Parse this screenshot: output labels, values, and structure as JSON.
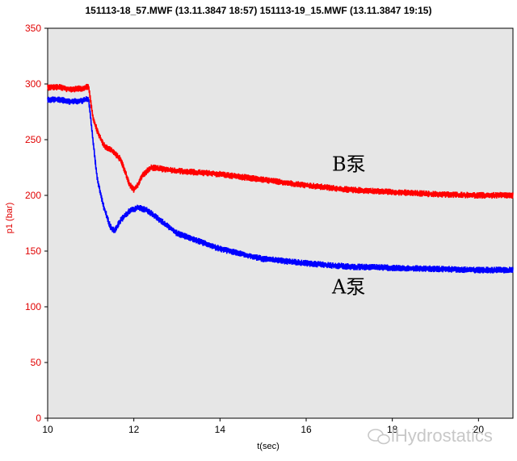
{
  "chart_data": {
    "type": "line",
    "title": "151113-18_57.MWF (13.11.3847 18:57) 151113-19_15.MWF (13.11.3847 19:15)",
    "xlabel": "t(sec)",
    "ylabel": "p1 (bar)",
    "xlim": [
      10,
      20.8
    ],
    "ylim": [
      0,
      350
    ],
    "x_ticks": [
      "10",
      "12",
      "14",
      "16",
      "18",
      "20"
    ],
    "y_ticks": [
      "0",
      "50",
      "100",
      "150",
      "200",
      "250",
      "300",
      "350"
    ],
    "grid": false,
    "background": "#e6e6e6",
    "series": [
      {
        "color": "#ff0000",
        "noise": 3,
        "x": [
          10.0,
          10.3,
          10.5,
          10.8,
          10.95,
          11.05,
          11.15,
          11.3,
          11.5,
          11.7,
          11.9,
          12.0,
          12.1,
          12.2,
          12.4,
          13.0,
          14.0,
          15.0,
          16.0,
          17.0,
          18.0,
          19.0,
          20.0,
          20.8
        ],
        "y": [
          297,
          297,
          295,
          296,
          298,
          270,
          258,
          245,
          240,
          232,
          210,
          205,
          210,
          218,
          225,
          222,
          219,
          214,
          209,
          205,
          203,
          201,
          200,
          200
        ]
      },
      {
        "color": "#0000ff",
        "noise": 3,
        "x": [
          10.0,
          10.3,
          10.5,
          10.8,
          10.95,
          11.05,
          11.15,
          11.3,
          11.45,
          11.55,
          11.7,
          11.9,
          12.1,
          12.3,
          12.6,
          13.0,
          14.0,
          15.0,
          16.0,
          17.0,
          18.0,
          19.0,
          20.0,
          20.8
        ],
        "y": [
          286,
          286,
          284,
          285,
          287,
          250,
          215,
          190,
          172,
          168,
          178,
          186,
          189,
          187,
          178,
          166,
          152,
          143,
          139,
          136,
          135,
          134,
          133,
          133
        ]
      }
    ],
    "annotations": [
      {
        "text": "B泵",
        "x": 16.6,
        "y": 222
      },
      {
        "text": "A泵",
        "x": 16.6,
        "y": 112
      }
    ]
  },
  "watermark": {
    "text": "lHydrostatics"
  }
}
